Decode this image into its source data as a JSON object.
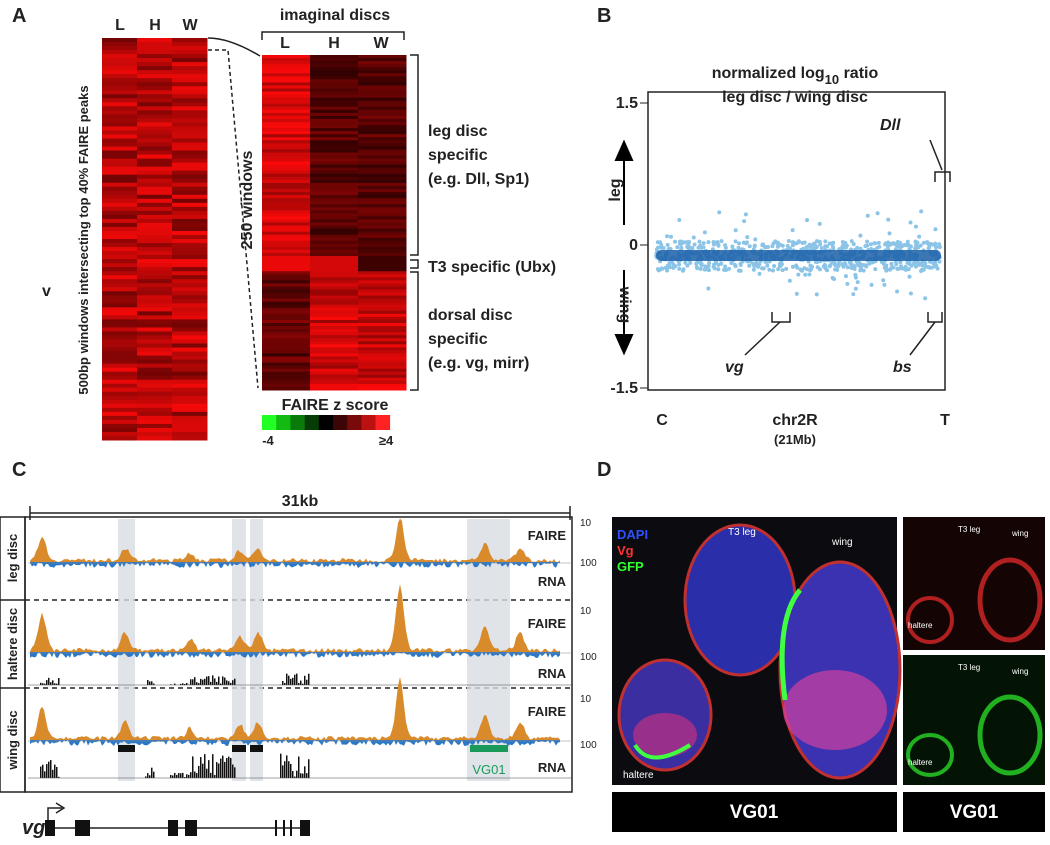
{
  "panel_a": {
    "label": "A",
    "left_columns": [
      "L",
      "H",
      "W"
    ],
    "left_axis_label": "500bp windows intersecting top 40% FAIRE peaks",
    "marker": "v",
    "title": "imaginal discs",
    "right_columns": [
      "L",
      "H",
      "W"
    ],
    "right_axis_label": "250 windows",
    "leg_group": [
      "leg disc",
      "specific",
      "(e.g. Dll, Sp1)"
    ],
    "t3_group": "T3 specific (Ubx)",
    "dorsal_group": [
      "dorsal disc",
      "specific",
      "(e.g. vg, mirr)"
    ],
    "scale_title": "FAIRE z score",
    "scale_min": "-4",
    "scale_max": "≥4"
  },
  "panel_b": {
    "label": "B",
    "title_parts": [
      "normalized log",
      "10",
      " ratio"
    ],
    "subtitle": "leg disc / wing disc",
    "ticks": [
      "1.5",
      "0",
      "-1.5"
    ],
    "up_label": "leg",
    "down_label": "wing",
    "annotations": [
      "Dll",
      "vg",
      "bs"
    ],
    "x_start": "C",
    "x_label": "chr2R",
    "x_sublabel": "(21Mb)",
    "x_end": "T"
  },
  "panel_c": {
    "label": "C",
    "scale": "31kb",
    "rows": [
      "leg disc",
      "haltere disc",
      "wing disc"
    ],
    "faire": "FAIRE",
    "rna": "RNA",
    "tick_top": "10",
    "tick_bottom": "100",
    "element": "VG01",
    "gene": "vg"
  },
  "panel_d": {
    "label": "D",
    "channels": [
      "DAPI",
      "Vg",
      "GFP"
    ],
    "tissues": [
      "T3 leg",
      "wing",
      "haltere"
    ],
    "caption_left": "VG01",
    "caption_right": "VG01"
  }
}
